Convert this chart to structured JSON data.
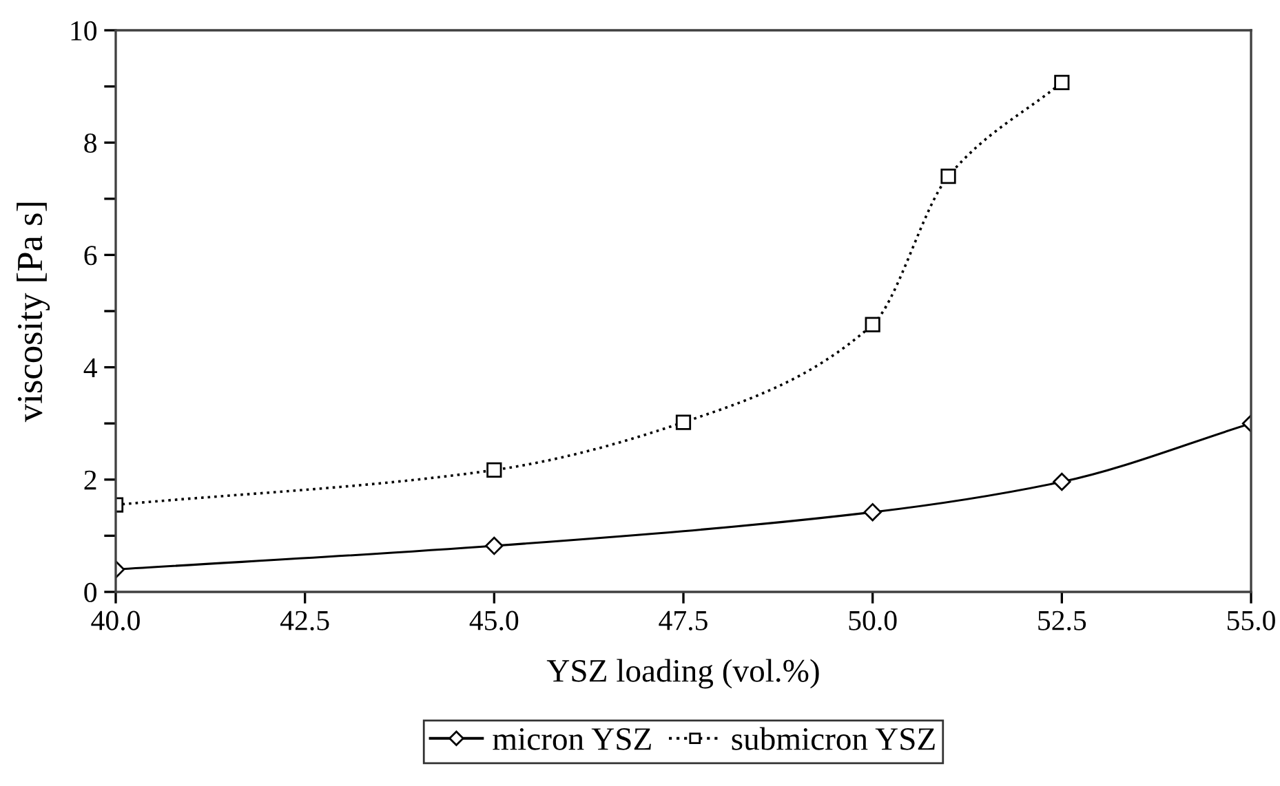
{
  "chart_data": {
    "type": "line",
    "xlabel": "YSZ loading (vol.%)",
    "ylabel": "viscosity [Pa s]",
    "xlim": [
      40,
      55
    ],
    "xticks": [
      {
        "value": 40,
        "label": "40.0"
      },
      {
        "value": 42.5,
        "label": "42.5"
      },
      {
        "value": 45,
        "label": "45.0"
      },
      {
        "value": 47.5,
        "label": "47.5"
      },
      {
        "value": 50,
        "label": "50.0"
      },
      {
        "value": 52.5,
        "label": "52.5"
      },
      {
        "value": 55,
        "label": "55.0"
      }
    ],
    "ylim": [
      0,
      10
    ],
    "yticks": [
      0,
      {
        "value": 1,
        "label": null
      },
      2,
      {
        "value": 3,
        "label": null
      },
      4,
      {
        "value": 5,
        "label": null
      },
      6,
      {
        "value": 7,
        "label": null
      },
      8,
      {
        "value": 9,
        "label": null
      },
      10
    ],
    "grid": false,
    "legend": "bottom",
    "series": [
      {
        "name": "micron YSZ",
        "color": "#000000",
        "marker": "diamond",
        "line_style": "solid",
        "x": [
          40,
          45,
          50,
          52.5,
          55
        ],
        "values": [
          0.4,
          0.82,
          1.42,
          1.96,
          3.0
        ]
      },
      {
        "name": "submicron YSZ",
        "color": "#000000",
        "marker": "square",
        "line_style": "dotted",
        "x": [
          40,
          45,
          47.5,
          50,
          51,
          52.5
        ],
        "values": [
          1.55,
          2.17,
          3.02,
          4.76,
          7.4,
          9.07
        ]
      }
    ]
  }
}
